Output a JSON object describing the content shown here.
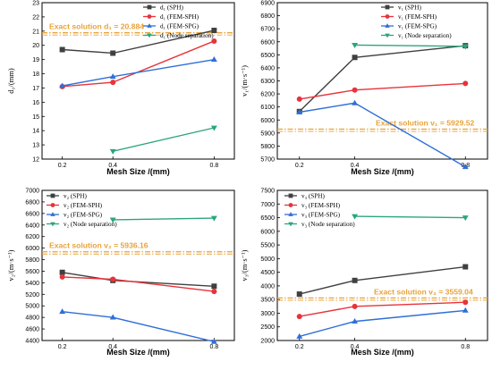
{
  "chart_data": [
    {
      "type": "line",
      "x_categories": [
        "0.2",
        "0.4",
        "0.8"
      ],
      "x_values": [
        0.2,
        0.4,
        0.8
      ],
      "xlabel": "Mesh Size /(mm)",
      "ylabel": "d₁/(mm)",
      "ylim": [
        12,
        23
      ],
      "yticks": [
        12,
        13,
        14,
        15,
        16,
        17,
        18,
        19,
        20,
        21,
        22,
        23
      ],
      "exact": {
        "label": "Exact solution d₁ = 20.884",
        "value": 20.884
      },
      "legend_position": "top-right",
      "series": [
        {
          "name": "d₁ (SPH)",
          "color": "#404040",
          "marker": "square",
          "values": [
            19.7,
            19.45,
            21.05
          ]
        },
        {
          "name": "d₁ (FEM-SPH)",
          "color": "#e8333a",
          "marker": "circle",
          "values": [
            17.1,
            17.4,
            20.3
          ]
        },
        {
          "name": "d₁ (FEM-SPG)",
          "color": "#2f6fd8",
          "marker": "triangle-up",
          "values": [
            17.15,
            17.8,
            19.0
          ]
        },
        {
          "name": "d₁ (Node separation)",
          "color": "#2ca67a",
          "marker": "triangle-down",
          "values": [
            null,
            12.55,
            14.2
          ]
        }
      ]
    },
    {
      "type": "line",
      "x_categories": [
        "0.2",
        "0.4",
        "0.8"
      ],
      "x_values": [
        0.2,
        0.4,
        0.8
      ],
      "xlabel": "Mesh Size /(mm)",
      "ylabel": "v₁/(m·s⁻¹)",
      "ylim": [
        5700,
        6900
      ],
      "yticks": [
        5700,
        5800,
        5900,
        6000,
        6100,
        6200,
        6300,
        6400,
        6500,
        6600,
        6700,
        6800,
        6900
      ],
      "exact": {
        "label": "Exact solution v₁ = 5929.52",
        "value": 5929.52
      },
      "legend_position": "top-right",
      "series": [
        {
          "name": "v₁ (SPH)",
          "color": "#404040",
          "marker": "square",
          "values": [
            6065,
            6480,
            6570
          ]
        },
        {
          "name": "v₁ (FEM-SPH)",
          "color": "#e8333a",
          "marker": "circle",
          "values": [
            6160,
            6230,
            6280
          ]
        },
        {
          "name": "v₁ (FEM-SPG)",
          "color": "#2f6fd8",
          "marker": "triangle-up",
          "values": [
            6060,
            6130,
            5640
          ]
        },
        {
          "name": "v₁ (Node separation)",
          "color": "#2ca67a",
          "marker": "triangle-down",
          "values": [
            null,
            6575,
            6565
          ]
        }
      ]
    },
    {
      "type": "line",
      "x_categories": [
        "0.2",
        "0.4",
        "0.8"
      ],
      "x_values": [
        0.2,
        0.4,
        0.8
      ],
      "xlabel": "Mesh Size /(mm)",
      "ylabel": "v₂/(m·s⁻¹)",
      "ylim": [
        4400,
        7000
      ],
      "yticks": [
        4400,
        4600,
        4800,
        5000,
        5200,
        5400,
        5600,
        5800,
        6000,
        6200,
        6400,
        6600,
        6800,
        7000
      ],
      "exact": {
        "label": "Exact solution v₂ = 5936.16",
        "value": 5936.16
      },
      "legend_position": "top-left",
      "series": [
        {
          "name": "v₂ (SPH)",
          "color": "#404040",
          "marker": "square",
          "values": [
            5580,
            5440,
            5340
          ]
        },
        {
          "name": "v₂ (FEM-SPH)",
          "color": "#e8333a",
          "marker": "circle",
          "values": [
            5500,
            5460,
            5250
          ]
        },
        {
          "name": "v₂ (FEM-SPG)",
          "color": "#2f6fd8",
          "marker": "triangle-up",
          "values": [
            4900,
            4800,
            4380
          ]
        },
        {
          "name": "v₂ (Node separation)",
          "color": "#2ca67a",
          "marker": "triangle-down",
          "values": [
            null,
            6490,
            6520
          ]
        }
      ]
    },
    {
      "type": "line",
      "x_categories": [
        "0.2",
        "0.4",
        "0.8"
      ],
      "x_values": [
        0.2,
        0.4,
        0.8
      ],
      "xlabel": "Mesh Size /(mm)",
      "ylabel": "v₃/(m·s⁻¹)",
      "ylim": [
        2000,
        7500
      ],
      "yticks": [
        2000,
        2500,
        3000,
        3500,
        4000,
        4500,
        5000,
        5500,
        6000,
        6500,
        7000,
        7500
      ],
      "exact": {
        "label": "Exact solution v₃ = 3559.04",
        "value": 3559.04
      },
      "legend_position": "top-left",
      "series": [
        {
          "name": "v₃ (SPH)",
          "color": "#404040",
          "marker": "square",
          "values": [
            3700,
            4200,
            4700
          ]
        },
        {
          "name": "v₃ (FEM-SPH)",
          "color": "#e8333a",
          "marker": "circle",
          "values": [
            2880,
            3250,
            3400
          ]
        },
        {
          "name": "v₃ (FEM-SPG)",
          "color": "#2f6fd8",
          "marker": "triangle-up",
          "values": [
            2150,
            2700,
            3100
          ]
        },
        {
          "name": "v₃ (Node separation)",
          "color": "#2ca67a",
          "marker": "triangle-down",
          "values": [
            null,
            6550,
            6500
          ]
        }
      ]
    }
  ],
  "styles": {
    "exact_line_color": "#e8a33a",
    "axis_color": "#000000"
  }
}
